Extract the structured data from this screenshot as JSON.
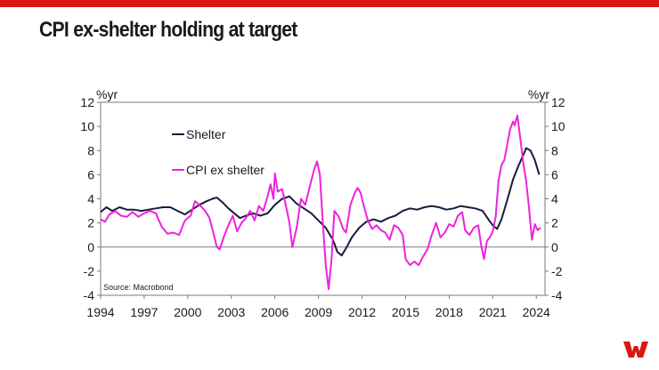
{
  "slide": {
    "title": "CPI ex-shelter holding at target",
    "brand_color": "#DA1710"
  },
  "logo": {
    "icon": "westpac-w-logo-icon"
  },
  "chart_data": {
    "type": "line",
    "title": "",
    "ylabel_left": "%yr",
    "ylabel_right": "%yr",
    "xlabel": "",
    "xlim": [
      1994,
      2024.6
    ],
    "ylim": [
      -4,
      12
    ],
    "x_ticks": [
      1994,
      1997,
      2000,
      2003,
      2006,
      2009,
      2012,
      2015,
      2018,
      2021,
      2024
    ],
    "y_ticks": [
      -4,
      -2,
      0,
      2,
      4,
      6,
      8,
      10,
      12
    ],
    "grid": false,
    "legend_placement": "top-left",
    "source_note": "Source: Macrobond",
    "series": [
      {
        "name": "Shelter",
        "color": "#1a1a40",
        "points": [
          [
            1994.0,
            2.9
          ],
          [
            1994.4,
            3.3
          ],
          [
            1994.8,
            3.0
          ],
          [
            1995.3,
            3.3
          ],
          [
            1995.8,
            3.1
          ],
          [
            1996.3,
            3.1
          ],
          [
            1996.8,
            3.0
          ],
          [
            1997.3,
            3.1
          ],
          [
            1997.8,
            3.2
          ],
          [
            1998.3,
            3.3
          ],
          [
            1998.8,
            3.3
          ],
          [
            1999.3,
            3.0
          ],
          [
            1999.8,
            2.7
          ],
          [
            2000.3,
            3.1
          ],
          [
            2000.8,
            3.5
          ],
          [
            2001.3,
            3.8
          ],
          [
            2001.7,
            4.0
          ],
          [
            2002.0,
            4.1
          ],
          [
            2002.4,
            3.7
          ],
          [
            2002.8,
            3.2
          ],
          [
            2003.2,
            2.8
          ],
          [
            2003.6,
            2.4
          ],
          [
            2004.0,
            2.6
          ],
          [
            2004.5,
            2.8
          ],
          [
            2005.0,
            2.6
          ],
          [
            2005.5,
            2.8
          ],
          [
            2006.0,
            3.5
          ],
          [
            2006.5,
            4.0
          ],
          [
            2007.0,
            4.2
          ],
          [
            2007.5,
            3.6
          ],
          [
            2008.0,
            3.2
          ],
          [
            2008.5,
            2.8
          ],
          [
            2009.0,
            2.2
          ],
          [
            2009.5,
            1.6
          ],
          [
            2010.0,
            0.6
          ],
          [
            2010.3,
            -0.4
          ],
          [
            2010.6,
            -0.7
          ],
          [
            2010.9,
            -0.1
          ],
          [
            2011.3,
            0.8
          ],
          [
            2011.8,
            1.6
          ],
          [
            2012.3,
            2.1
          ],
          [
            2012.8,
            2.3
          ],
          [
            2013.3,
            2.1
          ],
          [
            2013.8,
            2.4
          ],
          [
            2014.3,
            2.6
          ],
          [
            2014.8,
            3.0
          ],
          [
            2015.3,
            3.2
          ],
          [
            2015.8,
            3.1
          ],
          [
            2016.3,
            3.3
          ],
          [
            2016.8,
            3.4
          ],
          [
            2017.3,
            3.3
          ],
          [
            2017.8,
            3.1
          ],
          [
            2018.3,
            3.2
          ],
          [
            2018.8,
            3.4
          ],
          [
            2019.3,
            3.3
          ],
          [
            2019.8,
            3.2
          ],
          [
            2020.3,
            3.0
          ],
          [
            2020.7,
            2.3
          ],
          [
            2021.0,
            1.8
          ],
          [
            2021.3,
            1.5
          ],
          [
            2021.6,
            2.3
          ],
          [
            2022.0,
            3.9
          ],
          [
            2022.4,
            5.6
          ],
          [
            2022.8,
            6.8
          ],
          [
            2023.2,
            7.9
          ],
          [
            2023.3,
            8.2
          ],
          [
            2023.6,
            8.0
          ],
          [
            2023.9,
            7.2
          ],
          [
            2024.2,
            6.0
          ]
        ]
      },
      {
        "name": "CPI ex shelter",
        "color": "#EE22DD",
        "points": [
          [
            1994.0,
            2.3
          ],
          [
            1994.3,
            2.1
          ],
          [
            1994.6,
            2.7
          ],
          [
            1995.0,
            3.0
          ],
          [
            1995.4,
            2.6
          ],
          [
            1995.8,
            2.5
          ],
          [
            1996.2,
            2.9
          ],
          [
            1996.6,
            2.5
          ],
          [
            1997.0,
            2.8
          ],
          [
            1997.4,
            3.0
          ],
          [
            1997.8,
            2.8
          ],
          [
            1998.2,
            1.7
          ],
          [
            1998.6,
            1.1
          ],
          [
            1999.0,
            1.2
          ],
          [
            1999.4,
            1.0
          ],
          [
            1999.8,
            2.2
          ],
          [
            2000.2,
            2.6
          ],
          [
            2000.5,
            3.8
          ],
          [
            2000.8,
            3.5
          ],
          [
            2001.2,
            3.0
          ],
          [
            2001.5,
            2.4
          ],
          [
            2001.8,
            1.0
          ],
          [
            2002.0,
            0.0
          ],
          [
            2002.2,
            -0.2
          ],
          [
            2002.5,
            0.9
          ],
          [
            2002.8,
            1.8
          ],
          [
            2003.1,
            2.6
          ],
          [
            2003.4,
            1.3
          ],
          [
            2003.7,
            2.0
          ],
          [
            2004.0,
            2.4
          ],
          [
            2004.3,
            3.0
          ],
          [
            2004.6,
            2.2
          ],
          [
            2004.9,
            3.4
          ],
          [
            2005.2,
            3.0
          ],
          [
            2005.5,
            4.2
          ],
          [
            2005.7,
            5.2
          ],
          [
            2005.9,
            4.0
          ],
          [
            2006.0,
            6.1
          ],
          [
            2006.2,
            4.6
          ],
          [
            2006.5,
            4.8
          ],
          [
            2006.8,
            3.2
          ],
          [
            2007.0,
            2.0
          ],
          [
            2007.2,
            0.0
          ],
          [
            2007.5,
            1.6
          ],
          [
            2007.8,
            4.0
          ],
          [
            2008.1,
            3.5
          ],
          [
            2008.4,
            5.0
          ],
          [
            2008.7,
            6.4
          ],
          [
            2008.9,
            7.1
          ],
          [
            2009.1,
            6.0
          ],
          [
            2009.3,
            2.0
          ],
          [
            2009.5,
            -1.5
          ],
          [
            2009.7,
            -3.5
          ],
          [
            2009.9,
            -1.0
          ],
          [
            2010.1,
            3.0
          ],
          [
            2010.4,
            2.5
          ],
          [
            2010.7,
            1.5
          ],
          [
            2010.9,
            1.2
          ],
          [
            2011.2,
            3.5
          ],
          [
            2011.5,
            4.5
          ],
          [
            2011.7,
            4.9
          ],
          [
            2011.9,
            4.5
          ],
          [
            2012.1,
            3.5
          ],
          [
            2012.4,
            2.2
          ],
          [
            2012.7,
            1.5
          ],
          [
            2013.0,
            1.8
          ],
          [
            2013.3,
            1.4
          ],
          [
            2013.6,
            1.2
          ],
          [
            2013.9,
            0.6
          ],
          [
            2014.2,
            1.8
          ],
          [
            2014.5,
            1.6
          ],
          [
            2014.8,
            1.0
          ],
          [
            2015.0,
            -1.0
          ],
          [
            2015.3,
            -1.5
          ],
          [
            2015.6,
            -1.2
          ],
          [
            2015.9,
            -1.5
          ],
          [
            2016.2,
            -0.8
          ],
          [
            2016.5,
            -0.2
          ],
          [
            2016.8,
            1.0
          ],
          [
            2017.1,
            2.0
          ],
          [
            2017.4,
            0.8
          ],
          [
            2017.7,
            1.2
          ],
          [
            2018.0,
            1.9
          ],
          [
            2018.3,
            1.7
          ],
          [
            2018.6,
            2.6
          ],
          [
            2018.9,
            2.9
          ],
          [
            2019.1,
            1.4
          ],
          [
            2019.4,
            1.0
          ],
          [
            2019.7,
            1.6
          ],
          [
            2020.0,
            1.8
          ],
          [
            2020.2,
            0.2
          ],
          [
            2020.4,
            -1.0
          ],
          [
            2020.6,
            0.5
          ],
          [
            2020.8,
            0.8
          ],
          [
            2021.0,
            1.3
          ],
          [
            2021.2,
            2.5
          ],
          [
            2021.4,
            5.5
          ],
          [
            2021.6,
            6.8
          ],
          [
            2021.8,
            7.2
          ],
          [
            2022.0,
            8.5
          ],
          [
            2022.2,
            9.8
          ],
          [
            2022.4,
            10.4
          ],
          [
            2022.5,
            10.1
          ],
          [
            2022.7,
            10.9
          ],
          [
            2022.9,
            9.0
          ],
          [
            2023.1,
            7.0
          ],
          [
            2023.3,
            5.5
          ],
          [
            2023.5,
            3.2
          ],
          [
            2023.7,
            0.6
          ],
          [
            2023.9,
            1.9
          ],
          [
            2024.1,
            1.4
          ],
          [
            2024.3,
            1.6
          ]
        ]
      }
    ]
  }
}
